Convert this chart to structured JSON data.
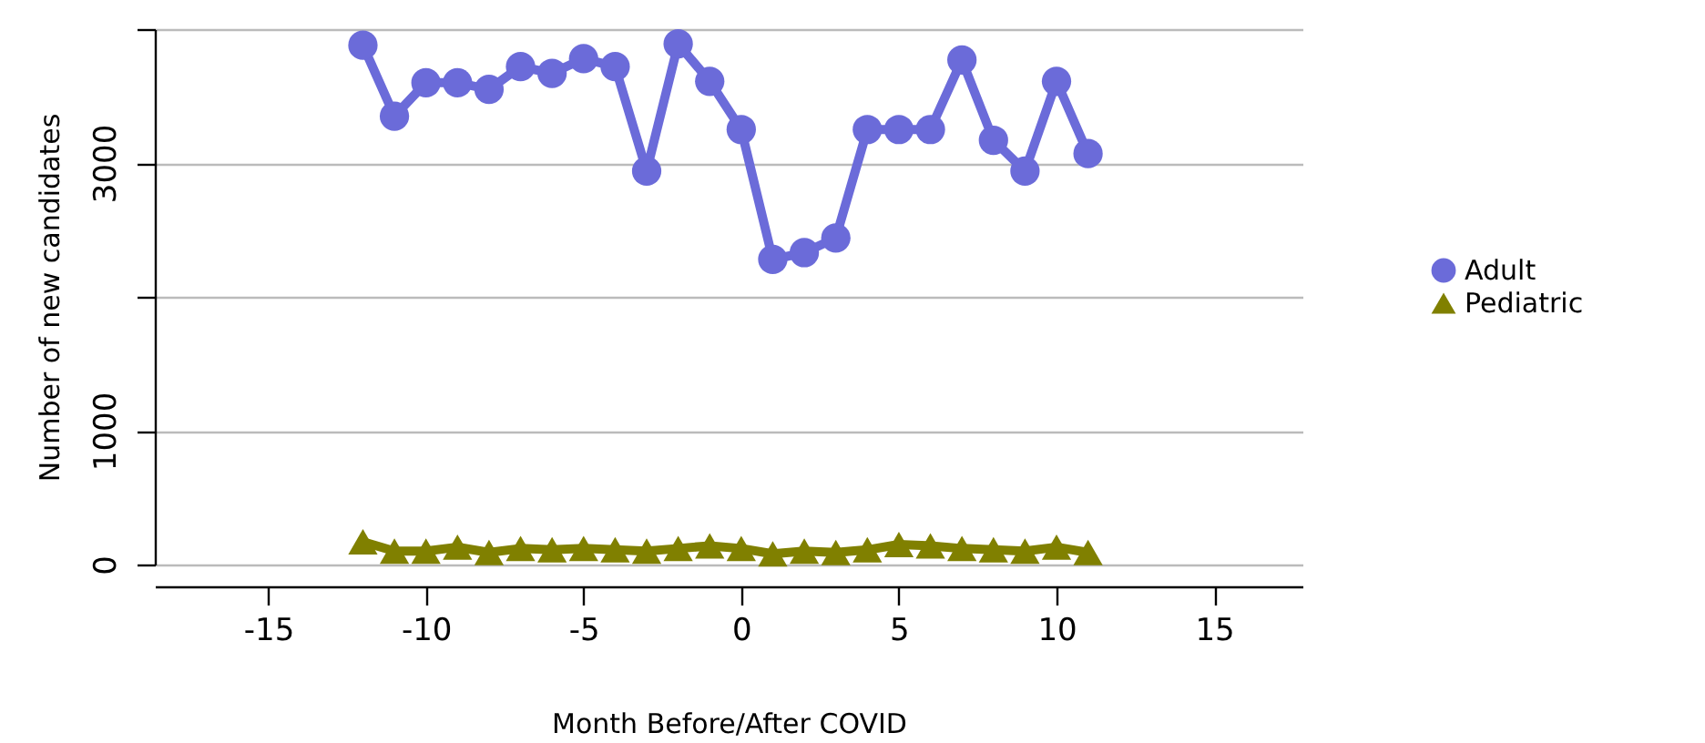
{
  "chart_data": {
    "type": "line",
    "xlabel": "Month Before/After COVID",
    "ylabel": "Number of new candidates",
    "x": [
      -12,
      -11,
      -10,
      -9,
      -8,
      -7,
      -6,
      -5,
      -4,
      -3,
      -2,
      -1,
      0,
      1,
      2,
      3,
      4,
      5,
      6,
      7,
      8,
      9,
      10,
      11
    ],
    "series": [
      {
        "name": "Adult",
        "color": "#6b6bd9",
        "marker": "circle",
        "values": [
          3880,
          3350,
          3600,
          3600,
          3550,
          3720,
          3670,
          3780,
          3720,
          2940,
          3890,
          3610,
          3250,
          2280,
          2330,
          2440,
          3250,
          3250,
          3250,
          3770,
          3170,
          2940,
          3610,
          3070
        ]
      },
      {
        "name": "Pediatric",
        "color": "#808000",
        "marker": "triangle",
        "values": [
          170,
          100,
          100,
          130,
          90,
          120,
          110,
          120,
          110,
          100,
          120,
          140,
          120,
          80,
          100,
          90,
          110,
          150,
          140,
          120,
          110,
          100,
          130,
          90
        ]
      }
    ],
    "xlim": [
      -18.6,
      17.8
    ],
    "xticks": [
      -15,
      -10,
      -5,
      0,
      5,
      10,
      15
    ],
    "ylim": [
      0,
      4000
    ],
    "yticks": [
      0,
      1000,
      {
        "value": 2000,
        "label": null
      },
      3000,
      {
        "value": 4000,
        "label": null
      }
    ],
    "grid": "y",
    "legend": "right",
    "line_style": "solid"
  }
}
